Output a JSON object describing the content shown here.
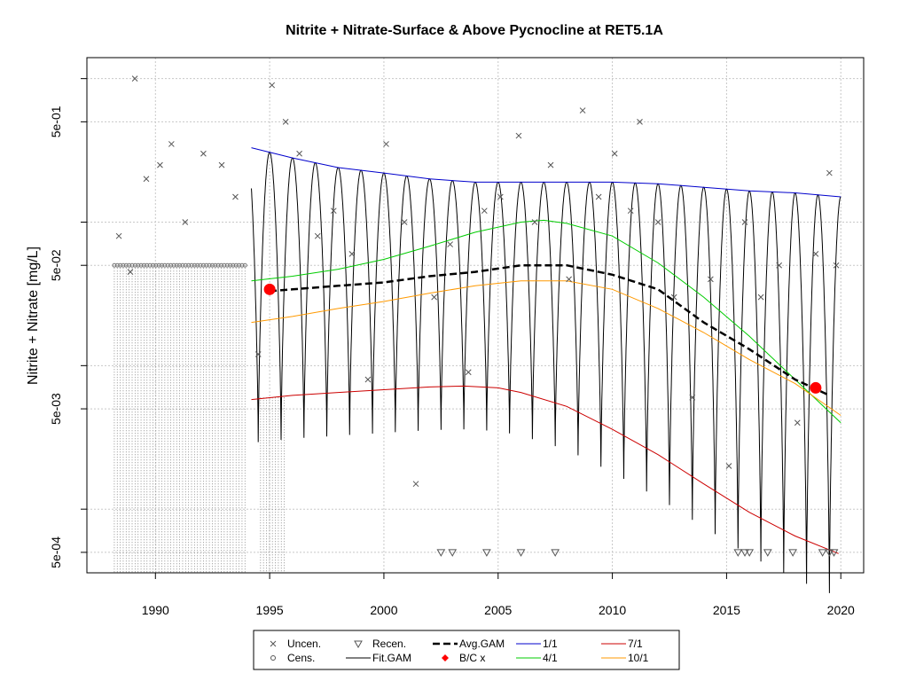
{
  "chart_data": {
    "type": "scatter",
    "title": "Nitrite + Nitrate-Surface & Above Pycnocline at RET5.1A",
    "xlabel": "",
    "ylabel": "Nitrite + Nitrate [mg/L]",
    "xlim": [
      1987.0,
      2021.0
    ],
    "ylim": [
      0.00036,
      1.4
    ],
    "y_scale": "log",
    "grid": true,
    "x_ticks": [
      "1990",
      "1995",
      "2000",
      "2005",
      "2010",
      "2015",
      "2020"
    ],
    "y_ticks": [
      "5e-04",
      "5e-03",
      "5e-02",
      "5e-01"
    ],
    "legend_position": "bottom",
    "legend": [
      "Uncen.",
      "Recen.",
      "Avg.GAM",
      "1/1",
      "7/1",
      "Cens.",
      "Fit.GAM",
      "B/C x",
      "4/1",
      "10/1"
    ],
    "series": [
      {
        "name": "1/1",
        "color": "#0000cc",
        "x": [
          1994.2,
          1996,
          1998,
          2000,
          2002,
          2004,
          2006,
          2008,
          2010,
          2012,
          2014,
          2016,
          2018,
          2020
        ],
        "values": [
          0.33,
          0.28,
          0.24,
          0.22,
          0.2,
          0.19,
          0.19,
          0.19,
          0.19,
          0.185,
          0.175,
          0.165,
          0.16,
          0.15
        ]
      },
      {
        "name": "4/1",
        "color": "#00cc00",
        "x": [
          1994.2,
          1996,
          1998,
          2000,
          2002,
          2004,
          2006,
          2007,
          2008,
          2010,
          2012,
          2014,
          2016,
          2018,
          2020
        ],
        "values": [
          0.039,
          0.042,
          0.047,
          0.055,
          0.068,
          0.085,
          0.1,
          0.103,
          0.098,
          0.08,
          0.052,
          0.03,
          0.016,
          0.008,
          0.004
        ]
      },
      {
        "name": "Avg.GAM",
        "color": "#000000",
        "x": [
          1995,
          1996,
          1998,
          2000,
          2002,
          2004,
          2006,
          2008,
          2010,
          2012,
          2014,
          2016,
          2018,
          2019.5
        ],
        "values": [
          0.033,
          0.034,
          0.036,
          0.038,
          0.042,
          0.045,
          0.05,
          0.05,
          0.043,
          0.034,
          0.02,
          0.013,
          0.008,
          0.0062
        ]
      },
      {
        "name": "10/1",
        "color": "#ff9900",
        "x": [
          1994.2,
          1996,
          1998,
          2000,
          2002,
          2004,
          2006,
          2008,
          2010,
          2012,
          2014,
          2016,
          2018,
          2020
        ],
        "values": [
          0.02,
          0.022,
          0.025,
          0.028,
          0.032,
          0.036,
          0.039,
          0.039,
          0.034,
          0.025,
          0.017,
          0.011,
          0.0075,
          0.0045
        ]
      },
      {
        "name": "7/1",
        "color": "#cc0000",
        "x": [
          1994.2,
          1996,
          1998,
          2000,
          2002,
          2003.5,
          2005,
          2006,
          2008,
          2010,
          2012,
          2014,
          2016,
          2018,
          2019.9
        ],
        "values": [
          0.0058,
          0.0062,
          0.0065,
          0.0068,
          0.0071,
          0.0072,
          0.007,
          0.0065,
          0.0052,
          0.0036,
          0.0024,
          0.0015,
          0.00095,
          0.00065,
          0.00049
        ]
      },
      {
        "name": "B/C x",
        "color": "#ff0000",
        "x": [
          1995.0,
          2018.9
        ],
        "values": [
          0.034,
          0.007
        ]
      }
    ],
    "fit_gam": {
      "name": "Fit.GAM",
      "color": "#000000",
      "x_start": 1994.2,
      "x_end": 2020.0,
      "cycles_per_year": 1
    },
    "censored_values_1988_1994": {
      "name": "Cens.",
      "value": 0.05
    },
    "uncensored": {
      "name": "Uncen.",
      "x": [
        1988.4,
        1988.9,
        1989.1,
        1989.6,
        1990.2,
        1990.7,
        1991.3,
        1992.1,
        1992.9,
        1993.5,
        1994.5,
        1995.1,
        1995.7,
        1996.3,
        1997.1,
        1997.8,
        1998.6,
        1999.3,
        2000.1,
        2000.9,
        2001.4,
        2002.2,
        2002.9,
        2003.7,
        2004.4,
        2005.1,
        2005.9,
        2006.6,
        2007.3,
        2008.1,
        2008.7,
        2009.4,
        2010.1,
        2010.8,
        2011.2,
        2012.0,
        2012.7,
        2013.5,
        2014.3,
        2015.1,
        2015.8,
        2016.5,
        2017.3,
        2018.1,
        2018.9,
        2019.5,
        2019.8
      ],
      "values": [
        0.08,
        0.045,
        1.0,
        0.2,
        0.25,
        0.35,
        0.1,
        0.3,
        0.25,
        0.15,
        0.012,
        0.9,
        0.5,
        0.3,
        0.08,
        0.12,
        0.06,
        0.008,
        0.35,
        0.1,
        0.0015,
        0.03,
        0.07,
        0.009,
        0.12,
        0.15,
        0.4,
        0.1,
        0.25,
        0.04,
        0.6,
        0.15,
        0.3,
        0.12,
        0.5,
        0.1,
        0.03,
        0.006,
        0.04,
        0.002,
        0.1,
        0.03,
        0.05,
        0.004,
        0.06,
        0.22,
        0.05
      ]
    },
    "recensored": {
      "name": "Recen.",
      "value": 0.0005,
      "x": [
        2002.5,
        2003.0,
        2004.5,
        2006.0,
        2007.5,
        2015.5,
        2015.8,
        2016.0,
        2016.8,
        2017.9,
        2019.2,
        2019.5,
        2019.7
      ]
    }
  }
}
